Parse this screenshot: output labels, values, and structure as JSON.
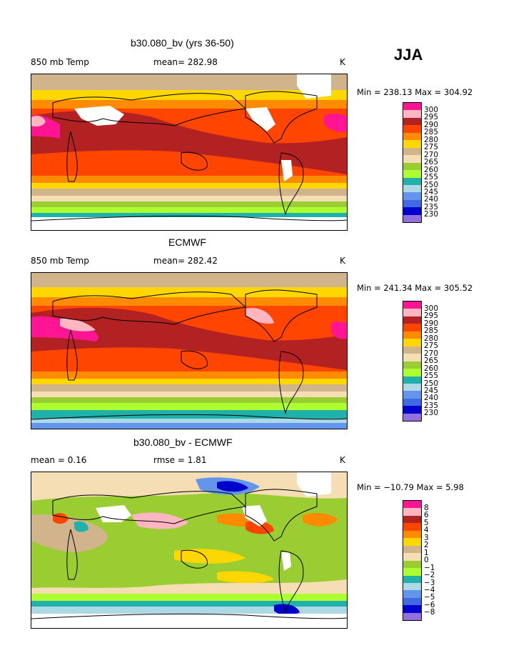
{
  "season": "JJA",
  "panels": [
    {
      "title": "b30.080_bv (yrs 36-50)",
      "left_label": "850 mb Temp",
      "center_label": "mean= 282.98",
      "right_label": "K",
      "minmax": "Min = 238.13 Max = 304.92",
      "levels": [
        "300",
        "295",
        "290",
        "285",
        "280",
        "275",
        "270",
        "265",
        "260",
        "255",
        "250",
        "245",
        "240",
        "235",
        "230"
      ],
      "colors": [
        "#ff1493",
        "#ffb6c1",
        "#b22222",
        "#ff4500",
        "#ff8c00",
        "#ffd700",
        "#d2b48c",
        "#f5deb3",
        "#9acd32",
        "#adff2f",
        "#20b2aa",
        "#add8e6",
        "#6495ed",
        "#4169e1",
        "#0000cd",
        "#9370db"
      ]
    },
    {
      "title": "ECMWF",
      "left_label": "850 mb Temp",
      "center_label": "mean= 282.42",
      "right_label": "K",
      "minmax": "Min = 241.34 Max = 305.52",
      "levels": [
        "300",
        "295",
        "290",
        "285",
        "280",
        "275",
        "270",
        "265",
        "260",
        "255",
        "250",
        "245",
        "240",
        "235",
        "230"
      ],
      "colors": [
        "#ff1493",
        "#ffb6c1",
        "#b22222",
        "#ff4500",
        "#ff8c00",
        "#ffd700",
        "#d2b48c",
        "#f5deb3",
        "#9acd32",
        "#adff2f",
        "#20b2aa",
        "#add8e6",
        "#6495ed",
        "#4169e1",
        "#0000cd",
        "#9370db"
      ]
    },
    {
      "title": "b30.080_bv - ECMWF",
      "left_label": "mean =    0.16",
      "center_label": "rmse =    1.81",
      "right_label": "K",
      "minmax": "Min = −10.79 Max =    5.98",
      "levels": [
        "8",
        "6",
        "5",
        "4",
        "3",
        "2",
        "1",
        "0",
        "−1",
        "−2",
        "−3",
        "−4",
        "−5",
        "−6",
        "−8"
      ],
      "colors": [
        "#ff1493",
        "#ffb6c1",
        "#b22222",
        "#ff4500",
        "#ff8c00",
        "#ffd700",
        "#d2b48c",
        "#f5deb3",
        "#9acd32",
        "#adff2f",
        "#20b2aa",
        "#add8e6",
        "#6495ed",
        "#4169e1",
        "#0000cd",
        "#9370db"
      ]
    }
  ]
}
